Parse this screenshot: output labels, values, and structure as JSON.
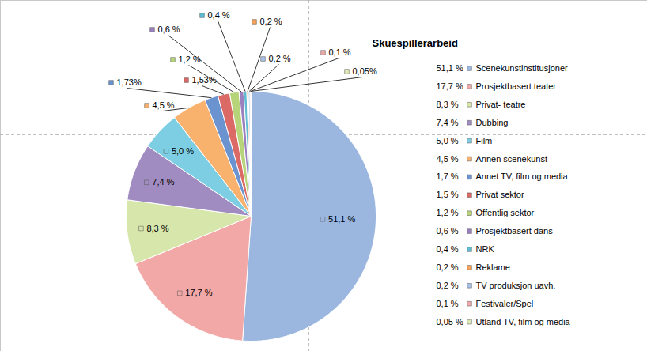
{
  "chart_data": {
    "type": "pie",
    "title": "Skuespillerarbeid",
    "categories": [
      "Scenekunstinstitusjoner",
      "Prosjektbasert teater",
      "Privat- teatre",
      "Dubbing",
      "Film",
      "Annen scenekunst",
      "Annet TV, film og media",
      "Privat sektor",
      "Offentlig sektor",
      "Prosjektbasert dans",
      "NRK",
      "Reklame",
      "TV produksjon uavh.",
      "Festivaler/Spel",
      "Utland TV, film og media"
    ],
    "values": [
      51.1,
      17.7,
      8.3,
      7.4,
      5.0,
      4.5,
      1.73,
      1.53,
      1.2,
      0.6,
      0.4,
      0.2,
      0.2,
      0.1,
      0.05
    ],
    "value_labels": [
      "51,1 %",
      "17,7 %",
      "8,3 %",
      "7,4 %",
      "5,0 %",
      "4,5 %",
      "1,73%",
      "1,53%",
      "1,2 %",
      "0,6 %",
      "0,4 %",
      "0,2 %",
      "0,2 %",
      "0,1 %",
      "0,05%"
    ],
    "legend_value_labels": [
      "51,1 %",
      "17,7 %",
      "8,3 %",
      "7,4 %",
      "5,0 %",
      "4,5 %",
      "1,7 %",
      "1,5 %",
      "1,2 %",
      "0,6 %",
      "0,4 %",
      "0,2 %",
      "0,2 %",
      "0,1 %",
      "0,05 %"
    ],
    "colors": [
      "#9BB7E0",
      "#F2A8A6",
      "#D7E6AA",
      "#A08CC0",
      "#7DCDE3",
      "#F9B26E",
      "#6A93CF",
      "#DB6A67",
      "#B8D47A",
      "#9A80BD",
      "#5FBCD3",
      "#F8A25A",
      "#A9C0E4",
      "#EDA9A8",
      "#DCE8B5"
    ],
    "data_labels": true,
    "legend": "right"
  }
}
